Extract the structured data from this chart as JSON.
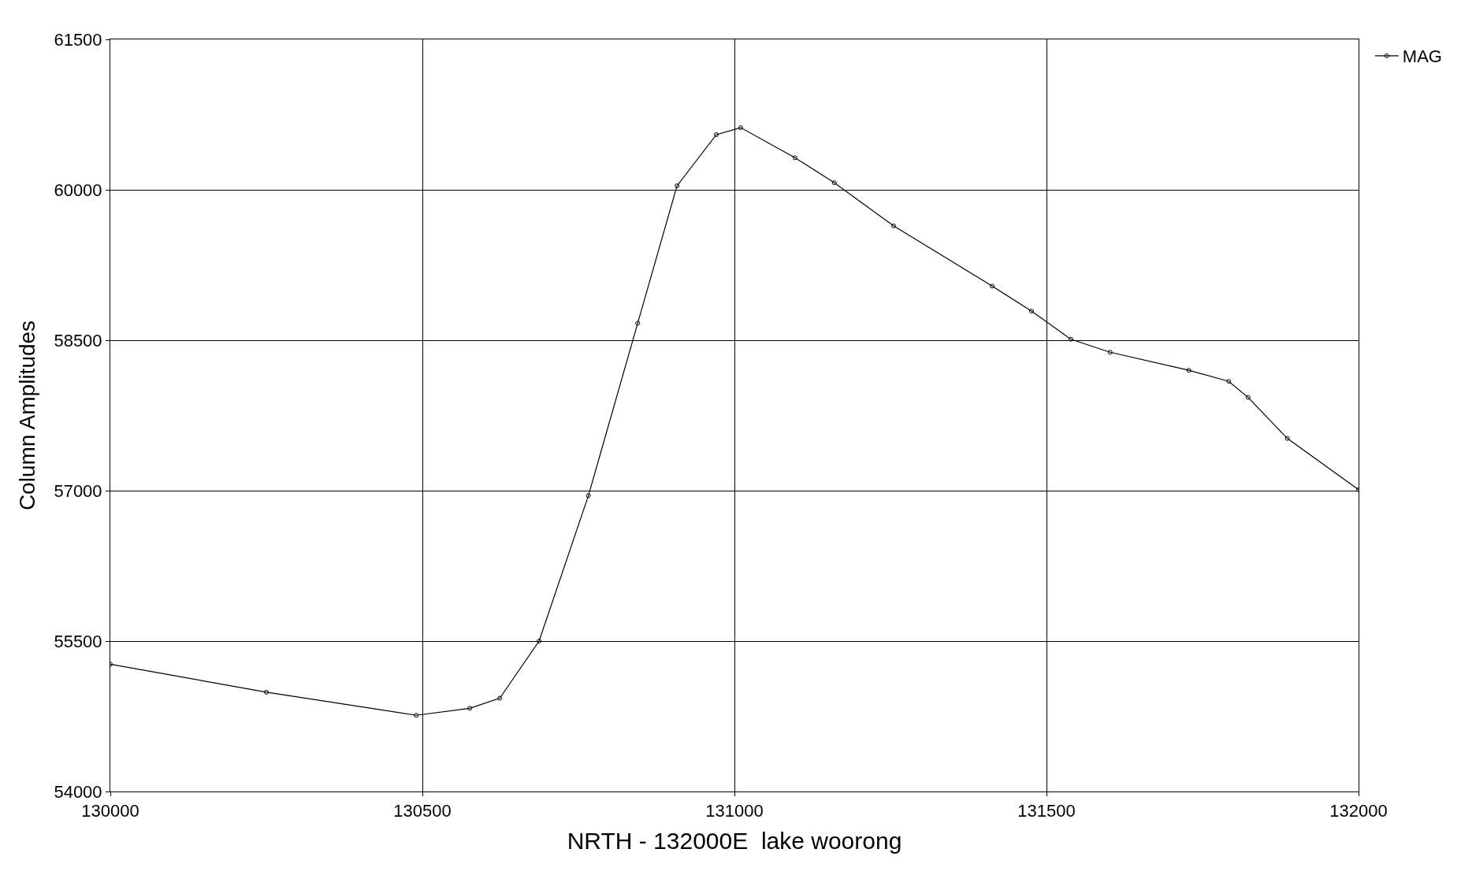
{
  "chart_data": {
    "type": "line",
    "xlabel": "NRTH - 132000E  lake woorong",
    "ylabel": "Column Amplitudes",
    "xlim": [
      130000,
      132000
    ],
    "xticks": [
      130000,
      130500,
      131000,
      131500,
      132000
    ],
    "ylim": [
      54000,
      61500
    ],
    "yticks": [
      54000,
      55500,
      57000,
      58500,
      60000,
      61500
    ],
    "grid": true,
    "legend": "top right",
    "marker": "circle",
    "line_style": "solid",
    "series": [
      {
        "name": "MAG",
        "color": "#000000",
        "x": [
          130000,
          130250,
          130490,
          130576,
          130624,
          130687,
          130766,
          130845,
          130908,
          130971,
          131010,
          131097,
          131160,
          131255,
          131413,
          131476,
          131539,
          131602,
          131728,
          131792,
          131823,
          131886,
          132000
        ],
        "values": [
          55270,
          54990,
          54760,
          54830,
          54930,
          55500,
          56950,
          58670,
          60040,
          60550,
          60620,
          60320,
          60070,
          59640,
          59040,
          58790,
          58510,
          58380,
          58200,
          58090,
          57930,
          57520,
          57010
        ]
      }
    ]
  }
}
